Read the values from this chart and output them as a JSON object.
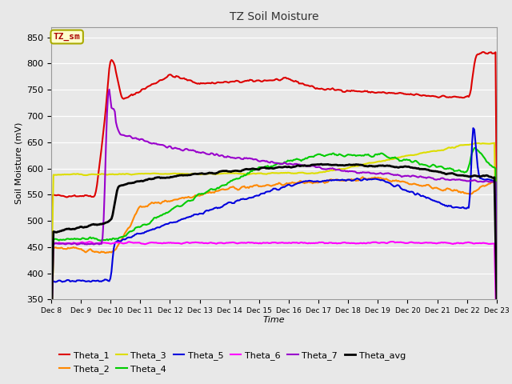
{
  "title": "TZ Soil Moisture",
  "xlabel": "Time",
  "ylabel": "Soil Moisture (mV)",
  "ylim": [
    350,
    870
  ],
  "yticks": [
    350,
    400,
    450,
    500,
    550,
    600,
    650,
    700,
    750,
    800,
    850
  ],
  "x_labels": [
    "Dec 8",
    "Dec 9",
    "Dec 10",
    "Dec 11",
    "Dec 12",
    "Dec 13",
    "Dec 14",
    "Dec 15",
    "Dec 16",
    "Dec 17",
    "Dec 18",
    "Dec 19",
    "Dec 20",
    "Dec 21",
    "Dec 22",
    "Dec 23"
  ],
  "background_color": "#e8e8e8",
  "plot_bg_color": "#e8e8e8",
  "series_colors": {
    "Theta_1": "#dd0000",
    "Theta_2": "#ff8800",
    "Theta_3": "#dddd00",
    "Theta_4": "#00cc00",
    "Theta_5": "#0000dd",
    "Theta_6": "#ff00ff",
    "Theta_7": "#9900cc",
    "Theta_avg": "#000000"
  }
}
